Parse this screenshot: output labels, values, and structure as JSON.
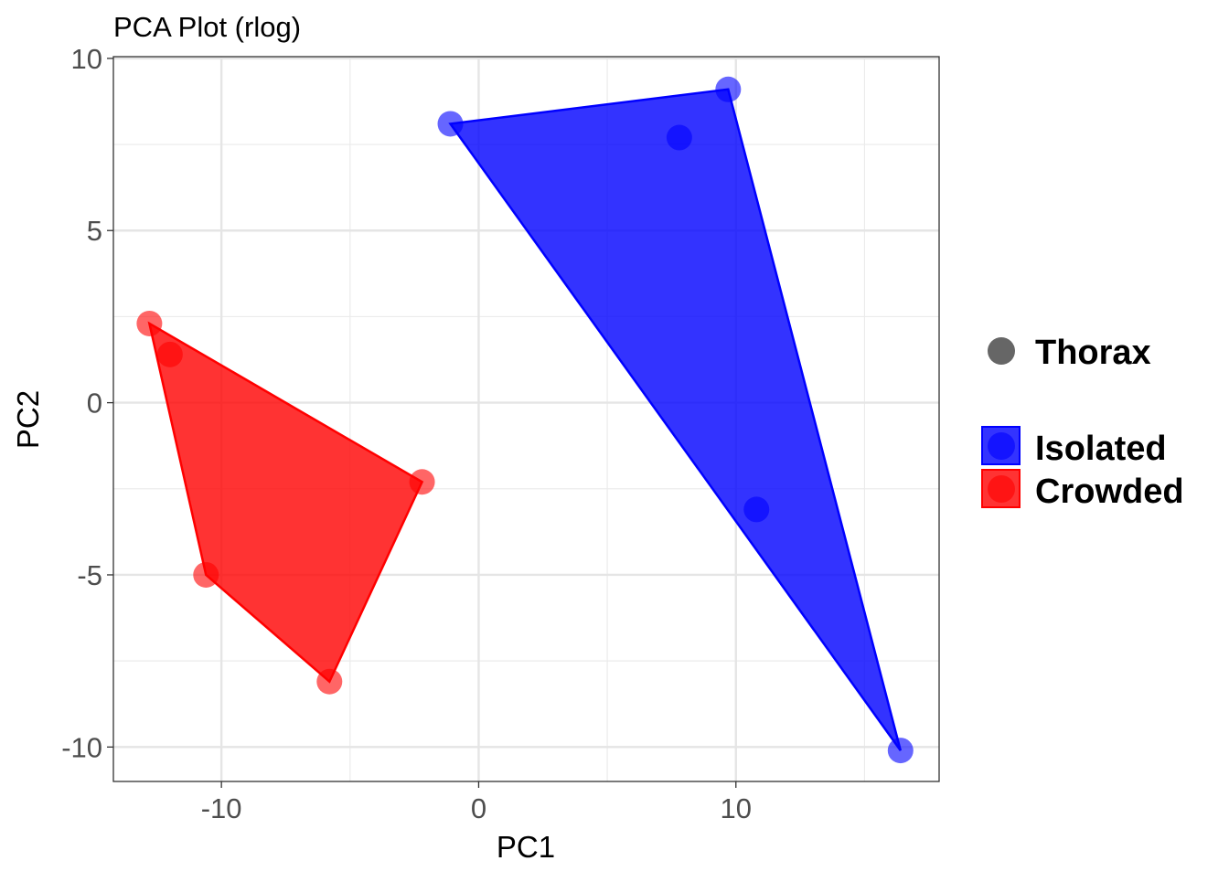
{
  "chart_data": {
    "type": "scatter",
    "title": "PCA Plot (rlog)",
    "xlabel": "PC1",
    "ylabel": "PC2",
    "xlim": [
      -14.2,
      17.9
    ],
    "ylim": [
      -11.0,
      10.05
    ],
    "xticks": [
      -10,
      0,
      10
    ],
    "xtick_labels": [
      "-10",
      "0",
      "10"
    ],
    "yticks": [
      10,
      5,
      0,
      -5,
      -10
    ],
    "ytick_labels": [
      "10",
      "5",
      "0",
      "-5",
      "-10"
    ],
    "grid": true,
    "legend_position": "right",
    "shape_legend": {
      "label": "Thorax",
      "color": "#666666"
    },
    "series": [
      {
        "name": "Isolated",
        "color": "#0000ff",
        "points": [
          [
            -1.1,
            8.1
          ],
          [
            9.7,
            9.1
          ],
          [
            7.8,
            7.7
          ],
          [
            10.8,
            -3.1
          ],
          [
            16.4,
            -10.1
          ]
        ],
        "hull": [
          [
            -1.1,
            8.1
          ],
          [
            9.7,
            9.1
          ],
          [
            16.4,
            -10.1
          ]
        ]
      },
      {
        "name": "Crowded",
        "color": "#ff0000",
        "points": [
          [
            -12.8,
            2.3
          ],
          [
            -12.0,
            1.4
          ],
          [
            -2.2,
            -2.3
          ],
          [
            -10.6,
            -5.0
          ],
          [
            -5.8,
            -8.1
          ]
        ],
        "hull": [
          [
            -12.8,
            2.3
          ],
          [
            -2.2,
            -2.3
          ],
          [
            -5.8,
            -8.1
          ],
          [
            -10.6,
            -5.0
          ]
        ]
      }
    ]
  }
}
